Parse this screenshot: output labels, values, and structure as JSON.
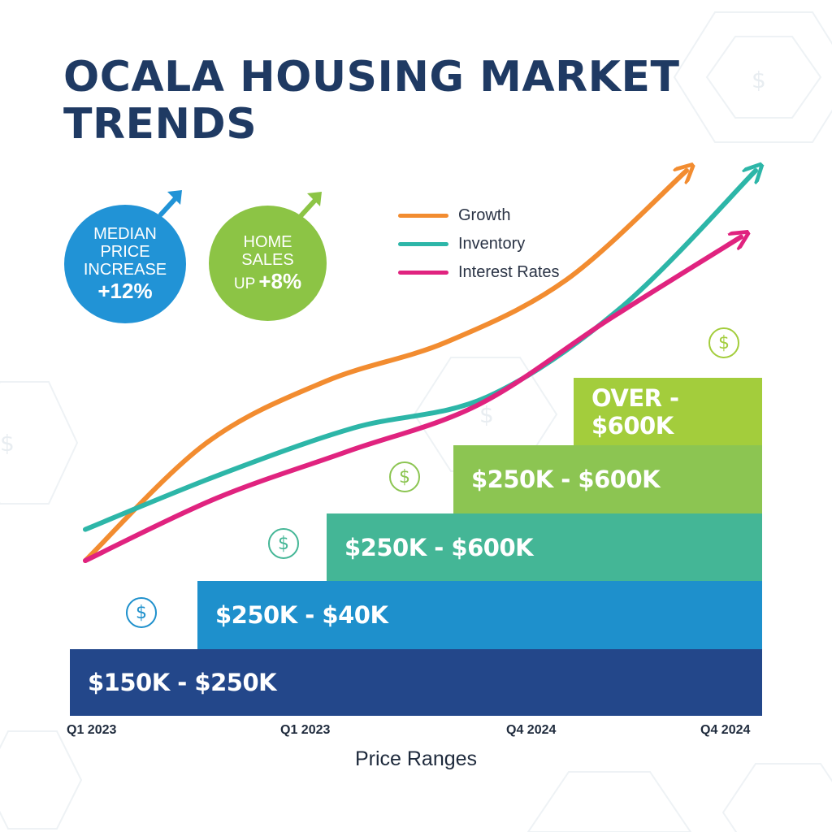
{
  "title_line1": "OCALA HOUSING MARKET",
  "title_line2": "TRENDS",
  "badges": {
    "median": {
      "line1": "MEDIAN",
      "line2": "PRICE",
      "line3": "INCREASE",
      "value": "+12%",
      "color": "#2193d6",
      "icon": "arrow-up-right-icon"
    },
    "sales": {
      "line1": "HOME",
      "line2": "SALES",
      "prefix": "UP",
      "value": "+8%",
      "color": "#8cc445",
      "icon": "arrow-up-right-icon"
    }
  },
  "colors": {
    "growth": "#f28c30",
    "inventory": "#2db6a8",
    "interest": "#e0237f",
    "step1": "#23478a",
    "step2": "#1e90cc",
    "step3": "#44b696",
    "step4": "#8cc552",
    "step5": "#a3cd3c",
    "dollar_icon": "dollar-icon"
  },
  "chart_data": {
    "type": "line",
    "xlabel": "Price Ranges",
    "x_ticks": [
      "Q1 2023",
      "Q1 2023",
      "Q4 2024",
      "Q4 2024"
    ],
    "legend": {
      "position": "top-right",
      "entries": [
        "Growth",
        "Inventory",
        "Interest Rates"
      ]
    },
    "grid": false,
    "series": [
      {
        "name": "Growth",
        "values": [
          0,
          30,
          46,
          56,
          72,
          100
        ]
      },
      {
        "name": "Inventory",
        "values": [
          8,
          22,
          34,
          42,
          65,
          100
        ]
      },
      {
        "name": "Interest Rates",
        "values": [
          0,
          16,
          28,
          40,
          62,
          83
        ]
      }
    ],
    "steps": [
      {
        "label": "$150K - $250K",
        "level": 1
      },
      {
        "label": "$250K - $40K",
        "level": 2
      },
      {
        "label": "$250K - $600K",
        "level": 3
      },
      {
        "label": "$250K - $600K",
        "level": 4
      },
      {
        "label": "OVER - $600K",
        "level": 5
      }
    ]
  }
}
